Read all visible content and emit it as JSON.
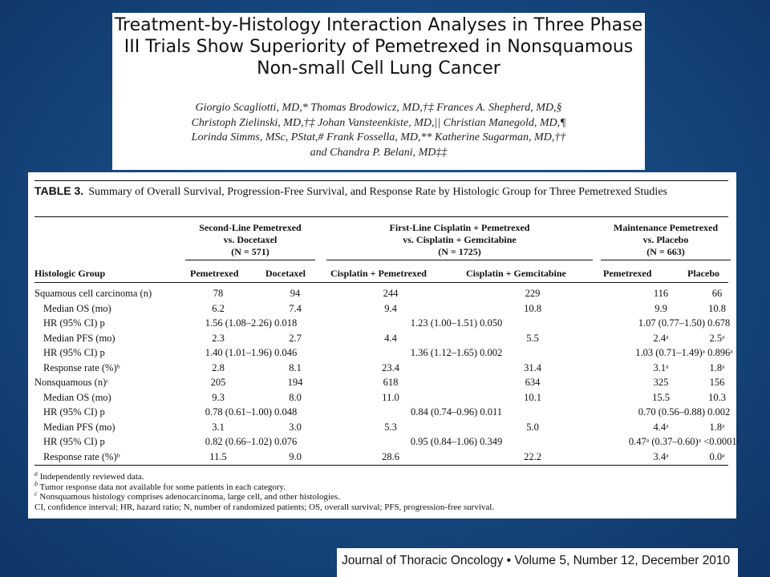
{
  "header": {
    "title_lines": [
      "Treatment-by-Histology Interaction Analyses in Three Phase",
      "III Trials Show Superiority of Pemetrexed in Nonsquamous",
      "Non-small Cell Lung Cancer"
    ],
    "author_lines": [
      "Giorgio Scagliotti, MD,* Thomas Brodowicz, MD,†‡ Frances A. Shepherd, MD,§",
      "Christoph Zielinski, MD,†‡ Johan Vansteenkiste, MD,|| Christian Manegold, MD,¶",
      "Lorinda Simms, MSc, PStat,# Frank Fossella, MD,** Katherine Sugarman, MD,††",
      "and Chandra P. Belani, MD‡‡"
    ]
  },
  "table": {
    "label": "TABLE 3.",
    "caption": "Summary of Overall Survival, Progression-Free Survival, and Response Rate by Histologic Group for Three Pemetrexed Studies",
    "groups": [
      {
        "lines": [
          "Second-Line Pemetrexed",
          "vs. Docetaxel",
          "(N = 571)"
        ]
      },
      {
        "lines": [
          "First-Line Cisplatin + Pemetrexed",
          "vs. Cisplatin + Gemcitabine",
          "(N = 1725)"
        ]
      },
      {
        "lines": [
          "Maintenance Pemetrexed",
          "vs. Placebo",
          "(N = 663)"
        ]
      }
    ],
    "columns": [
      "Histologic Group",
      "Pemetrexed",
      "Docetaxel",
      "Cisplatin + Pemetrexed",
      "Cisplatin + Gemcitabine",
      "Pemetrexed",
      "Placebo"
    ],
    "rows": [
      {
        "label": "Squamous cell carcinoma (n)",
        "indent": false,
        "type": "six",
        "values": [
          "78",
          "94",
          "244",
          "229",
          "116",
          "66"
        ]
      },
      {
        "label": "Median OS (mo)",
        "indent": true,
        "type": "six",
        "values": [
          "6.2",
          "7.4",
          "9.4",
          "10.8",
          "9.9",
          "10.8"
        ]
      },
      {
        "label": "HR (95% CI) p",
        "indent": true,
        "type": "hr",
        "values": [
          "1.56 (1.08–2.26) 0.018",
          "1.23 (1.00–1.51) 0.050",
          "1.07 (0.77–1.50) 0.678"
        ]
      },
      {
        "label": "Median PFS (mo)",
        "indent": true,
        "type": "six",
        "values": [
          "2.3",
          "2.7",
          "4.4",
          "5.5",
          "2.4ᵃ",
          "2.5ᵃ"
        ]
      },
      {
        "label": "HR (95% CI) p",
        "indent": true,
        "type": "hr",
        "values": [
          "1.40 (1.01–1.96) 0.046",
          "1.36 (1.12–1.65) 0.002",
          "1.03 (0.71–1.49)ᵃ 0.896ᵃ"
        ]
      },
      {
        "label": "Response rate (%)ᵇ",
        "indent": true,
        "type": "six",
        "values": [
          "2.8",
          "8.1",
          "23.4",
          "31.4",
          "3.1ᵃ",
          "1.8ᵃ"
        ]
      },
      {
        "label": "Nonsquamous (n)ᶜ",
        "indent": false,
        "type": "six",
        "values": [
          "205",
          "194",
          "618",
          "634",
          "325",
          "156"
        ]
      },
      {
        "label": "Median OS (mo)",
        "indent": true,
        "type": "six",
        "values": [
          "9.3",
          "8.0",
          "11.0",
          "10.1",
          "15.5",
          "10.3"
        ]
      },
      {
        "label": "HR (95% CI) p",
        "indent": true,
        "type": "hr",
        "values": [
          "0.78 (0.61–1.00) 0.048",
          "0.84 (0.74–0.96) 0.011",
          "0.70 (0.56–0.88) 0.002"
        ]
      },
      {
        "label": "Median PFS (mo)",
        "indent": true,
        "type": "six",
        "values": [
          "3.1",
          "3.0",
          "5.3",
          "5.0",
          "4.4ᵃ",
          "1.8ᵃ"
        ]
      },
      {
        "label": "HR (95% CI) p",
        "indent": true,
        "type": "hr",
        "values": [
          "0.82 (0.66–1.02) 0.076",
          "0.95 (0.84–1.06) 0.349",
          "0.47ᵃ (0.37–0.60)ᵃ <0.0001ᵃ"
        ]
      },
      {
        "label": "Response rate (%)ᵇ",
        "indent": true,
        "type": "six",
        "values": [
          "11.5",
          "9.0",
          "28.6",
          "22.2",
          "3.4ᵃ",
          "0.0ᵃ"
        ]
      }
    ],
    "footnotes": [
      {
        "mark": "a",
        "text": " Independently reviewed data."
      },
      {
        "mark": "b",
        "text": " Tumor response data not available for some patients in each category."
      },
      {
        "mark": "c",
        "text": " Nonsquamous histology comprises adenocarcinoma, large cell, and other histologies."
      },
      {
        "mark": "",
        "text": "CI, confidence interval; HR, hazard ratio; N, number of randomized patients; OS, overall survival; PFS, progression-free survival."
      }
    ]
  },
  "journal": {
    "citation": "Journal of Thoracic Oncology • Volume 5, Number 12, December 2010"
  }
}
